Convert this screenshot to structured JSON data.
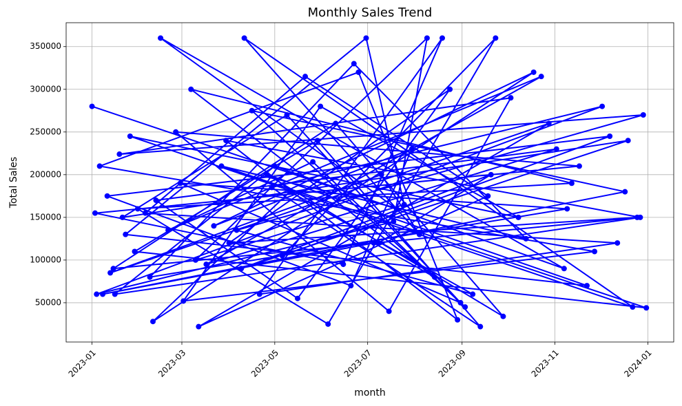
{
  "chart_data": {
    "type": "line",
    "title": "Monthly Sales Trend",
    "x_label": "month",
    "y_label": "Total Sales",
    "color": "blue",
    "grid": true,
    "marker": "o",
    "xlim": [
      -17,
      382
    ],
    "xticks": [
      {
        "value": 0,
        "label": "2023-01"
      },
      {
        "value": 59,
        "label": "2023-03"
      },
      {
        "value": 120,
        "label": "2023-05"
      },
      {
        "value": 181,
        "label": "2023-07"
      },
      {
        "value": 243,
        "label": "2023-09"
      },
      {
        "value": 304,
        "label": "2023-11"
      },
      {
        "value": 365,
        "label": "2024-01"
      }
    ],
    "ylim": [
      4000,
      378000
    ],
    "yticks": [
      50000,
      100000,
      150000,
      200000,
      250000,
      300000,
      350000
    ],
    "x": [
      0,
      200,
      45,
      310,
      120,
      15,
      360,
      88,
      240,
      175,
      5,
      330,
      60,
      150,
      280,
      25,
      355,
      100,
      215,
      190,
      12,
      300,
      70,
      260,
      140,
      35,
      345,
      110,
      230,
      165,
      2,
      320,
      55,
      195,
      275,
      18,
      362,
      95,
      250,
      130,
      40,
      290,
      80,
      210,
      170,
      10,
      340,
      125,
      265,
      155,
      30,
      315,
      65,
      225,
      185,
      7,
      350,
      105,
      245,
      145,
      50,
      295,
      75,
      205,
      180,
      22,
      325,
      115,
      270,
      160,
      14,
      358,
      90,
      235,
      135,
      42,
      305,
      68,
      220,
      198,
      3,
      335,
      118,
      255,
      148,
      28,
      364,
      85,
      285,
      172,
      38,
      312,
      58,
      242,
      128,
      20,
      352,
      98,
      262,
      188
    ],
    "values": [
      280000,
      160000,
      360000,
      90000,
      210000,
      60000,
      150000,
      240000,
      30000,
      320000,
      210000,
      110000,
      52000,
      280000,
      150000,
      245000,
      45000,
      360000,
      130000,
      200000,
      85000,
      260000,
      22000,
      175000,
      315000,
      155000,
      120000,
      60000,
      360000,
      95000,
      155000,
      210000,
      250000,
      40000,
      290000,
      224000,
      270000,
      135000,
      60000,
      180000,
      28000,
      320000,
      140000,
      230000,
      70000,
      175000,
      245000,
      105000,
      360000,
      25000,
      160000,
      190000,
      300000,
      80000,
      120000,
      60000,
      180000,
      275000,
      45000,
      215000,
      135000,
      315000,
      95000,
      165000,
      360000,
      130000,
      70000,
      200000,
      34000,
      260000,
      90000,
      150000,
      120000,
      300000,
      55000,
      170000,
      230000,
      100000,
      360000,
      145000,
      60000,
      280000,
      185000,
      22000,
      240000,
      110000,
      44000,
      210000,
      125000,
      330000,
      80000,
      160000,
      190000,
      50000,
      270000,
      150000,
      240000,
      90000,
      200000,
      120000
    ]
  }
}
